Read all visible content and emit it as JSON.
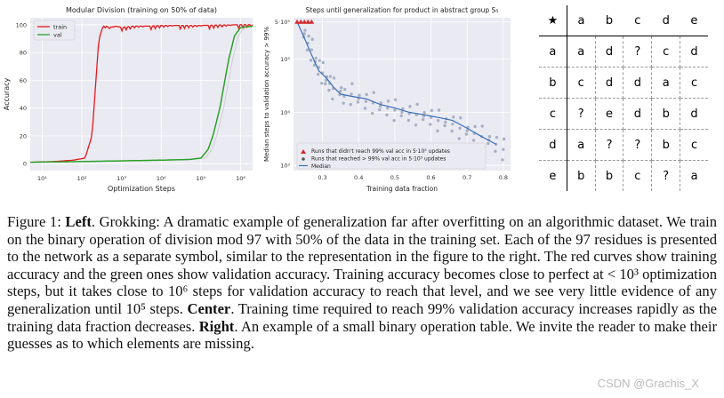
{
  "chart_data": [
    {
      "type": "line",
      "title": "Modular Division (training on 50% of data)",
      "xlabel": "Optimization Steps",
      "ylabel": "Accuracy",
      "xscale": "log",
      "xlim": [
        5,
        2000000
      ],
      "ylim": [
        -5,
        105
      ],
      "x_ticks": [
        "10¹",
        "10²",
        "10³",
        "10⁴",
        "10⁵",
        "10⁶"
      ],
      "x_tick_values": [
        10,
        100,
        1000,
        10000,
        100000,
        1000000
      ],
      "y_ticks": [
        0,
        20,
        40,
        60,
        80,
        100
      ],
      "legend": [
        "train",
        "val"
      ],
      "colors": {
        "train": "#e41a1c",
        "val": "#2ca02c",
        "bg": "#eaeaf2",
        "grid": "#ffffff"
      },
      "series": [
        {
          "name": "train",
          "x": [
            5,
            20,
            60,
            120,
            180,
            220,
            260,
            300,
            350,
            400,
            500,
            700,
            1000,
            2000,
            5000,
            10000,
            100000,
            1000000,
            2000000
          ],
          "y": [
            1,
            1.5,
            2.5,
            4,
            20,
            55,
            85,
            96,
            99,
            99,
            98,
            99,
            98,
            99,
            99,
            99.5,
            99.5,
            100,
            100
          ]
        },
        {
          "name": "val",
          "x": [
            5,
            100,
            1000,
            10000,
            50000,
            100000,
            150000,
            200000,
            300000,
            400000,
            500000,
            700000,
            1000000,
            2000000
          ],
          "y": [
            1,
            1.5,
            2,
            2.5,
            3,
            4,
            10,
            20,
            40,
            60,
            75,
            92,
            98,
            99
          ]
        }
      ]
    },
    {
      "type": "scatter",
      "title": "Steps until generalization for product in abstract group S₅",
      "xlabel": "Training data fraction",
      "ylabel": "Median steps to validation accuracy > 99%",
      "yscale": "log",
      "xlim": [
        0.22,
        0.82
      ],
      "ylim": [
        800,
        600000
      ],
      "x_ticks": [
        "0.3",
        "0.4",
        "0.5",
        "0.6",
        "0.7",
        "0.8"
      ],
      "x_tick_values": [
        0.3,
        0.4,
        0.5,
        0.6,
        0.7,
        0.8
      ],
      "y_ticks": [
        "10³",
        "10⁴",
        "10⁵",
        "5·10⁵"
      ],
      "y_tick_values": [
        1000,
        10000,
        100000,
        500000
      ],
      "legend": [
        "Runs that didn't reach 99% val acc in 5·10⁵ updates",
        "Runs that reached > 99% val acc in 5·10⁵ updates",
        "Median"
      ],
      "not_reached": {
        "x": [
          0.23,
          0.24,
          0.25,
          0.26,
          0.27
        ],
        "y": [
          500000,
          500000,
          500000,
          500000,
          500000
        ]
      },
      "median": {
        "x": [
          0.23,
          0.25,
          0.27,
          0.29,
          0.31,
          0.33,
          0.35,
          0.38,
          0.42,
          0.46,
          0.5,
          0.54,
          0.58,
          0.62,
          0.66,
          0.7,
          0.74,
          0.78
        ],
        "y": [
          500000,
          250000,
          120000,
          60000,
          45000,
          30000,
          22000,
          20000,
          18000,
          14000,
          12000,
          10000,
          9000,
          8000,
          7000,
          5000,
          3500,
          2500
        ]
      },
      "reached": {
        "x": [
          0.25,
          0.26,
          0.27,
          0.28,
          0.29,
          0.3,
          0.31,
          0.32,
          0.33,
          0.35,
          0.36,
          0.38,
          0.4,
          0.42,
          0.44,
          0.46,
          0.48,
          0.5,
          0.52,
          0.54,
          0.56,
          0.58,
          0.6,
          0.62,
          0.64,
          0.66,
          0.68,
          0.7,
          0.72,
          0.74,
          0.76,
          0.78,
          0.8
        ],
        "y": [
          300000,
          200000,
          150000,
          90000,
          70000,
          55000,
          40000,
          35000,
          28000,
          25000,
          20000,
          22000,
          18000,
          16000,
          15000,
          13000,
          12000,
          11000,
          10000,
          9500,
          9000,
          8500,
          8000,
          7000,
          6500,
          6000,
          5000,
          4500,
          4000,
          3500,
          3000,
          2500,
          2000
        ]
      },
      "colors": {
        "not_reached": "#d62728",
        "reached": "#9aa6bd",
        "median": "#3a6fb5",
        "bg": "#eaeaf2"
      }
    },
    {
      "type": "table",
      "header": [
        "★",
        "a",
        "b",
        "c",
        "d",
        "e"
      ],
      "rows": [
        [
          "a",
          "a",
          "d",
          "?",
          "c",
          "d"
        ],
        [
          "b",
          "c",
          "d",
          "d",
          "a",
          "c"
        ],
        [
          "c",
          "?",
          "e",
          "d",
          "b",
          "d"
        ],
        [
          "d",
          "a",
          "?",
          "?",
          "b",
          "c"
        ],
        [
          "e",
          "b",
          "b",
          "c",
          "?",
          "a"
        ]
      ]
    }
  ],
  "caption": {
    "label": "Figure 1: ",
    "left_label": "Left",
    "left_text": ". Grokking: A dramatic example of generalization far after overfitting on an algorithmic dataset. We train on the binary operation of division mod 97 with 50% of the data in the training set. Each of the 97 residues is presented to the network as a separate symbol, similar to the representation in the figure to the right. The red curves show training accuracy and the green ones show validation accuracy. Training accuracy becomes close to perfect at < 10³ optimization steps, but it takes close to 10⁶ steps for validation accuracy to reach that level, and we see very little evidence of any generalization until 10⁵ steps. ",
    "center_label": "Center",
    "center_text": ". Training time required to reach 99% validation accuracy increases rapidly as the training data fraction decreases. ",
    "right_label": "Right",
    "right_text": ". An example of a small binary operation table. We invite the reader to make their guesses as to which elements are missing."
  },
  "watermark": "CSDN @Grachis_X"
}
